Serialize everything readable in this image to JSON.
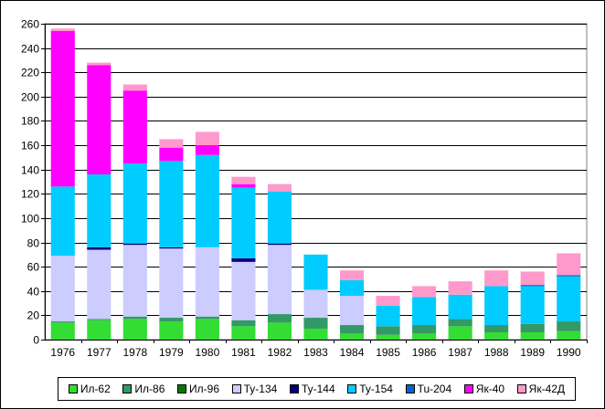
{
  "chart_data": {
    "type": "bar",
    "stacked": true,
    "categories": [
      "1976",
      "1977",
      "1978",
      "1979",
      "1980",
      "1981",
      "1982",
      "1983",
      "1984",
      "1985",
      "1986",
      "1987",
      "1988",
      "1989",
      "1990"
    ],
    "ylim": [
      0,
      260
    ],
    "yticks": [
      0,
      20,
      40,
      60,
      80,
      100,
      120,
      140,
      160,
      180,
      200,
      220,
      240,
      260
    ],
    "grid": true,
    "legend_position": "bottom",
    "series": [
      {
        "name": "Ил-62",
        "color": "#33dd33",
        "values": [
          14,
          16,
          17,
          15,
          17,
          11,
          14,
          9,
          5,
          4,
          5,
          11,
          6,
          6,
          7
        ]
      },
      {
        "name": "Ил-86",
        "color": "#339966",
        "values": [
          1,
          1,
          2,
          3,
          2,
          5,
          7,
          9,
          7,
          7,
          7,
          6,
          6,
          7,
          8
        ]
      },
      {
        "name": "Ил-96",
        "color": "#007a00",
        "values": [
          0,
          0,
          0,
          0,
          0,
          0,
          0,
          0,
          0,
          0,
          0,
          0,
          0,
          0,
          0
        ]
      },
      {
        "name": "Ту-134",
        "color": "#ccccff",
        "values": [
          54,
          57,
          59,
          57,
          57,
          48,
          57,
          23,
          24,
          0,
          0,
          0,
          0,
          0,
          0
        ]
      },
      {
        "name": "Ту-144",
        "color": "#000080",
        "values": [
          0,
          2,
          1,
          1,
          0,
          3,
          1,
          0,
          0,
          0,
          0,
          0,
          0,
          0,
          0
        ]
      },
      {
        "name": "Ту-154",
        "color": "#00ccff",
        "values": [
          57,
          60,
          66,
          71,
          76,
          58,
          43,
          29,
          13,
          17,
          23,
          20,
          32,
          31,
          37
        ]
      },
      {
        "name": "Tu-204",
        "color": "#0066cc",
        "values": [
          0,
          0,
          0,
          0,
          0,
          0,
          0,
          0,
          0,
          0,
          0,
          0,
          0,
          1,
          1
        ]
      },
      {
        "name": "Як-40",
        "color": "#ff00ff",
        "values": [
          128,
          90,
          60,
          11,
          8,
          3,
          0,
          0,
          0,
          0,
          0,
          0,
          0,
          0,
          0
        ]
      },
      {
        "name": "Як-42Д",
        "color": "#ff99cc",
        "values": [
          2,
          2,
          5,
          7,
          11,
          6,
          6,
          0,
          8,
          8,
          9,
          11,
          13,
          11,
          18
        ]
      }
    ]
  }
}
